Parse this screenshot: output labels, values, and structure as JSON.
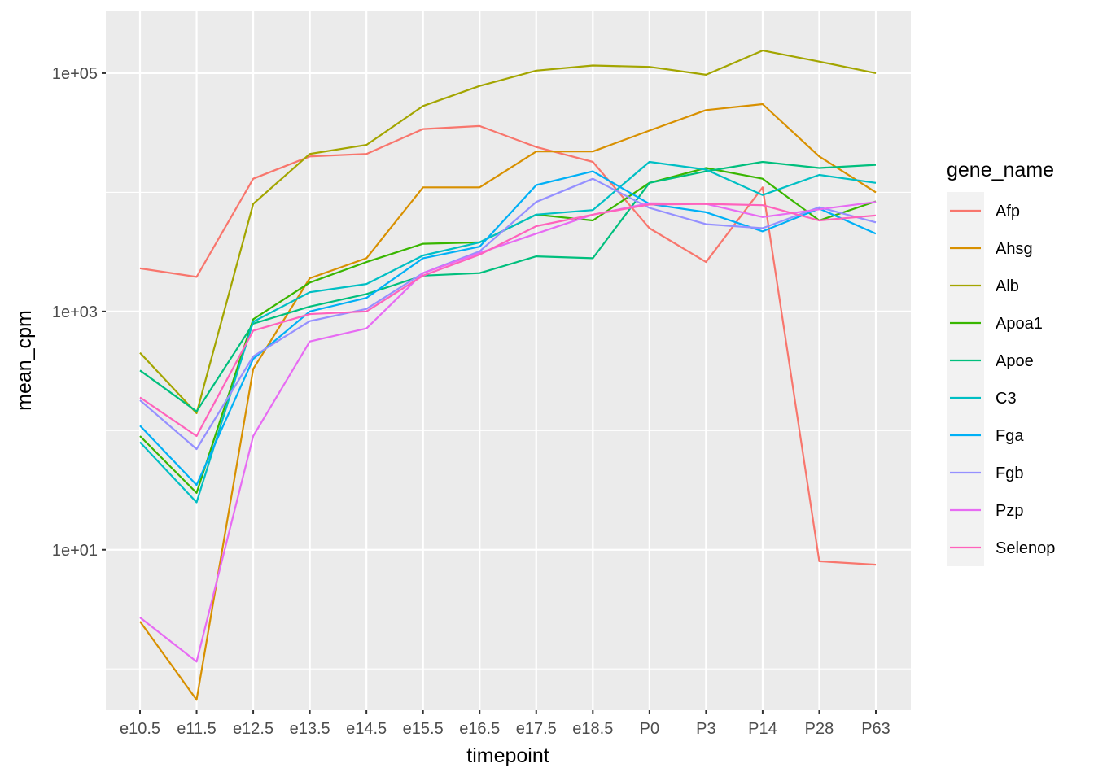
{
  "chart_data": {
    "type": "line",
    "xlabel": "timepoint",
    "ylabel": "mean_cpm",
    "y_scale": "log10",
    "ylim": [
      0.45,
      330000
    ],
    "y_ticks": [
      10,
      1000,
      100000
    ],
    "y_tick_labels": [
      "1e+01",
      "1e+03",
      "1e+05"
    ],
    "grid": true,
    "legend_position": "right",
    "legend_title": "gene_name",
    "panel_background": "#ebebeb",
    "categories": [
      "e10.5",
      "e11.5",
      "e12.5",
      "e13.5",
      "e14.5",
      "e15.5",
      "e16.5",
      "e17.5",
      "e18.5",
      "P0",
      "P3",
      "P14",
      "P28",
      "P63"
    ],
    "series": [
      {
        "name": "Afp",
        "color": "#F8766D",
        "values": [
          2300,
          1950,
          13000,
          20000,
          21000,
          34000,
          36000,
          24000,
          18000,
          5000,
          2600,
          11000,
          8,
          7.5
        ]
      },
      {
        "name": "Ahsg",
        "color": "#D89000",
        "values": [
          2.5,
          0.55,
          330,
          1900,
          2800,
          11000,
          11000,
          22000,
          22000,
          33000,
          49000,
          55000,
          20000,
          10000
        ]
      },
      {
        "name": "Alb",
        "color": "#A3A500",
        "values": [
          450,
          140,
          8000,
          21000,
          25000,
          53000,
          78000,
          105000,
          116000,
          113000,
          97000,
          155000,
          125000,
          100000
        ]
      },
      {
        "name": "Apoa1",
        "color": "#39B600",
        "values": [
          90,
          30,
          860,
          1750,
          2600,
          3700,
          3800,
          6500,
          5800,
          12000,
          16000,
          13000,
          5800,
          8400
        ]
      },
      {
        "name": "Apoe",
        "color": "#00BF7D",
        "values": [
          320,
          145,
          790,
          1100,
          1400,
          2000,
          2100,
          2900,
          2800,
          12000,
          15000,
          18000,
          16000,
          17000
        ]
      },
      {
        "name": "C3",
        "color": "#00BFC4",
        "values": [
          80,
          25,
          820,
          1450,
          1700,
          2950,
          3800,
          6500,
          7100,
          18000,
          15500,
          9500,
          14000,
          12000
        ]
      },
      {
        "name": "Fga",
        "color": "#00B0F6",
        "values": [
          110,
          35,
          400,
          1000,
          1300,
          2800,
          3500,
          11500,
          15000,
          8000,
          6800,
          4700,
          7300,
          4500
        ]
      },
      {
        "name": "Fgb",
        "color": "#9590FF",
        "values": [
          180,
          70,
          420,
          830,
          1050,
          2100,
          3200,
          8300,
          13000,
          7400,
          5400,
          5000,
          7500,
          5600
        ]
      },
      {
        "name": "Pzp",
        "color": "#E76BF3",
        "values": [
          2.7,
          1.15,
          90,
          560,
          720,
          2100,
          3100,
          4500,
          6500,
          8100,
          8000,
          6200,
          7200,
          8300
        ]
      },
      {
        "name": "Selenop",
        "color": "#FF62BC",
        "values": [
          190,
          90,
          690,
          950,
          1000,
          2000,
          3000,
          5200,
          6500,
          7900,
          8000,
          7800,
          5800,
          6400
        ]
      }
    ]
  }
}
